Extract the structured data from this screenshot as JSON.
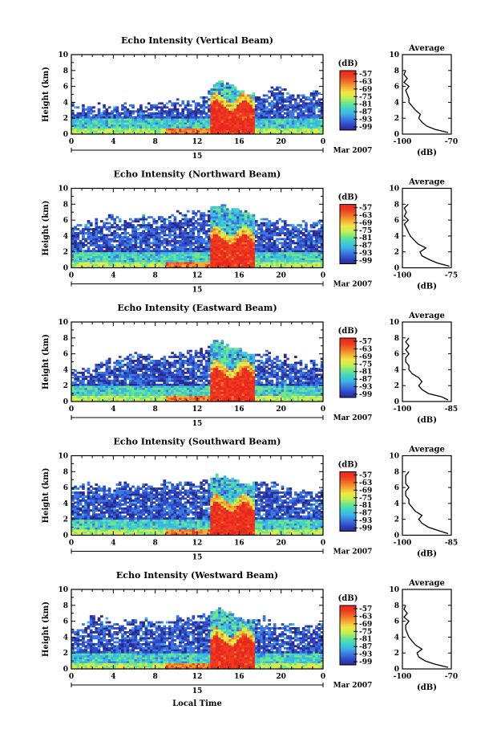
{
  "chart_data": [
    {
      "type": "heatmap",
      "title": "Echo Intensity (Vertical Beam)",
      "ylabel": "Height (km)",
      "x": [
        0,
        1,
        2,
        3,
        4,
        5,
        6,
        7,
        8,
        9,
        10,
        11,
        12,
        13,
        14,
        15,
        16,
        17,
        18,
        19,
        20,
        21,
        22,
        23,
        24
      ],
      "ylim": [
        0,
        10
      ],
      "xlim": [
        0,
        24
      ],
      "yticks": [
        "0",
        "2",
        "4",
        "6",
        "8",
        "10"
      ],
      "xticks": [
        "0",
        "4",
        "8",
        "12",
        "16",
        "20",
        "0"
      ],
      "date_label": "15",
      "month_label": "Mar 2007",
      "colorbar": {
        "unit": "(dB)",
        "ticks": [
          "-57",
          "-63",
          "-69",
          "-75",
          "-81",
          "-87",
          "-93",
          "-99"
        ],
        "range": [
          -99,
          -57
        ]
      },
      "echo_top_km": [
        3.8,
        3.5,
        3.5,
        3.6,
        3.6,
        3.7,
        3.6,
        3.7,
        3.8,
        3.9,
        4.0,
        4.0,
        4.2,
        5.0,
        6.5,
        6.0,
        5.5,
        5.0,
        5.2,
        5.5,
        5.8,
        5.2,
        5.0,
        5.2,
        5.3
      ],
      "profile": {
        "title": "Average",
        "xlabel": "(dB)",
        "xlim": [
          -100,
          -70
        ],
        "xticks": [
          "-100",
          "-70"
        ],
        "yticks": [
          "0",
          "2",
          "4",
          "6",
          "8",
          "10"
        ],
        "height_km": [
          0.2,
          0.6,
          1.0,
          1.5,
          2.0,
          2.5,
          3.0,
          3.5,
          4.0,
          4.5,
          5.0,
          5.5,
          6.0,
          6.5,
          7.0,
          7.5,
          8.0
        ],
        "value_db": [
          -72,
          -80,
          -85,
          -88,
          -90,
          -89,
          -92,
          -94,
          -96,
          -96,
          -97,
          -98,
          -96,
          -99,
          -97,
          -99,
          -98
        ]
      }
    },
    {
      "type": "heatmap",
      "title": "Echo Intensity (Northward Beam)",
      "ylabel": "Height (km)",
      "x": [
        0,
        1,
        2,
        3,
        4,
        5,
        6,
        7,
        8,
        9,
        10,
        11,
        12,
        13,
        14,
        15,
        16,
        17,
        18,
        19,
        20,
        21,
        22,
        23,
        24
      ],
      "ylim": [
        0,
        10
      ],
      "xlim": [
        0,
        24
      ],
      "yticks": [
        "0",
        "2",
        "4",
        "6",
        "8",
        "10"
      ],
      "xticks": [
        "0",
        "4",
        "8",
        "12",
        "16",
        "20",
        "0"
      ],
      "date_label": "15",
      "month_label": "Mar 2007",
      "colorbar": {
        "unit": "(dB)",
        "ticks": [
          "-57",
          "-63",
          "-69",
          "-75",
          "-81",
          "-87",
          "-93",
          "-99"
        ],
        "range": [
          -99,
          -57
        ]
      },
      "echo_top_km": [
        5.0,
        5.5,
        6.0,
        6.0,
        6.5,
        6.2,
        6.0,
        6.5,
        6.0,
        6.5,
        6.8,
        7.0,
        7.0,
        7.5,
        8.0,
        7.5,
        7.2,
        7.0,
        6.5,
        6.0,
        6.0,
        5.5,
        5.5,
        5.8,
        6.0
      ],
      "profile": {
        "title": "Average",
        "xlabel": "(dB)",
        "xlim": [
          -100,
          -75
        ],
        "xticks": [
          "-100",
          "-75"
        ],
        "yticks": [
          "0",
          "2",
          "4",
          "6",
          "8",
          "10"
        ],
        "height_km": [
          0.2,
          0.6,
          1.0,
          1.5,
          2.0,
          2.5,
          3.0,
          3.5,
          4.0,
          4.5,
          5.0,
          5.5,
          6.0,
          6.5,
          7.0,
          7.5,
          8.0
        ],
        "value_db": [
          -76,
          -82,
          -86,
          -90,
          -91,
          -88,
          -92,
          -94,
          -96,
          -97,
          -98,
          -99,
          -97,
          -99,
          -98,
          -99,
          -97
        ]
      }
    },
    {
      "type": "heatmap",
      "title": "Echo Intensity (Eastward Beam)",
      "ylabel": "Height (km)",
      "x": [
        0,
        1,
        2,
        3,
        4,
        5,
        6,
        7,
        8,
        9,
        10,
        11,
        12,
        13,
        14,
        15,
        16,
        17,
        18,
        19,
        20,
        21,
        22,
        23,
        24
      ],
      "ylim": [
        0,
        10
      ],
      "xlim": [
        0,
        24
      ],
      "yticks": [
        "0",
        "2",
        "4",
        "6",
        "8",
        "10"
      ],
      "xticks": [
        "0",
        "4",
        "8",
        "12",
        "16",
        "20",
        "0"
      ],
      "date_label": "15",
      "month_label": "Mar 2007",
      "colorbar": {
        "unit": "(dB)",
        "ticks": [
          "-57",
          "-63",
          "-69",
          "-75",
          "-81",
          "-87",
          "-93",
          "-99"
        ],
        "range": [
          -99,
          -57
        ]
      },
      "echo_top_km": [
        3.8,
        4.0,
        4.2,
        5.0,
        5.5,
        5.5,
        6.0,
        5.8,
        5.5,
        5.5,
        6.0,
        6.0,
        6.2,
        7.0,
        7.5,
        7.0,
        6.5,
        6.0,
        6.0,
        6.0,
        5.5,
        5.5,
        5.0,
        5.0,
        5.5
      ],
      "profile": {
        "title": "Average",
        "xlabel": "(dB)",
        "xlim": [
          -100,
          -85
        ],
        "xticks": [
          "-100",
          "-85"
        ],
        "yticks": [
          "0",
          "2",
          "4",
          "6",
          "8",
          "10"
        ],
        "height_km": [
          0.2,
          0.6,
          1.0,
          1.5,
          2.0,
          2.5,
          3.0,
          3.5,
          4.0,
          4.5,
          5.0,
          5.5,
          6.0,
          6.5,
          7.0,
          7.5,
          8.0
        ],
        "value_db": [
          -86,
          -88,
          -92,
          -94,
          -95,
          -94,
          -95,
          -97,
          -98,
          -98,
          -99,
          -99,
          -98,
          -99,
          -98,
          -99,
          -98
        ]
      }
    },
    {
      "type": "heatmap",
      "title": "Echo Intensity (Southward Beam)",
      "ylabel": "Height (km)",
      "x": [
        0,
        1,
        2,
        3,
        4,
        5,
        6,
        7,
        8,
        9,
        10,
        11,
        12,
        13,
        14,
        15,
        16,
        17,
        18,
        19,
        20,
        21,
        22,
        23,
        24
      ],
      "ylim": [
        0,
        10
      ],
      "xlim": [
        0,
        24
      ],
      "yticks": [
        "0",
        "2",
        "4",
        "6",
        "8",
        "10"
      ],
      "xticks": [
        "0",
        "4",
        "8",
        "12",
        "16",
        "20",
        "0"
      ],
      "date_label": "15",
      "month_label": "Mar 2007",
      "colorbar": {
        "unit": "(dB)",
        "ticks": [
          "-57",
          "-63",
          "-69",
          "-75",
          "-81",
          "-87",
          "-93",
          "-99"
        ],
        "range": [
          -99,
          -57
        ]
      },
      "echo_top_km": [
        5.5,
        6.5,
        6.5,
        6.0,
        6.0,
        6.5,
        6.0,
        6.5,
        6.5,
        6.5,
        6.5,
        6.5,
        6.5,
        7.0,
        7.5,
        7.0,
        6.5,
        6.5,
        6.5,
        6.5,
        6.0,
        6.0,
        5.5,
        5.5,
        5.5
      ],
      "profile": {
        "title": "Average",
        "xlabel": "(dB)",
        "xlim": [
          -100,
          -85
        ],
        "xticks": [
          "-100",
          "-85"
        ],
        "yticks": [
          "0",
          "2",
          "4",
          "6",
          "8",
          "10"
        ],
        "height_km": [
          0.2,
          0.6,
          1.0,
          1.5,
          2.0,
          2.5,
          3.0,
          3.5,
          4.0,
          4.5,
          5.0,
          5.5,
          6.0,
          6.5,
          7.0,
          7.5,
          8.0
        ],
        "value_db": [
          -86,
          -89,
          -92,
          -94,
          -95,
          -94,
          -96,
          -97,
          -98,
          -98,
          -99,
          -99,
          -98,
          -99,
          -99,
          -99,
          -98
        ]
      }
    },
    {
      "type": "heatmap",
      "title": "Echo Intensity (Westward Beam)",
      "ylabel": "Height (km)",
      "xlabel": "Local Time",
      "x": [
        0,
        1,
        2,
        3,
        4,
        5,
        6,
        7,
        8,
        9,
        10,
        11,
        12,
        13,
        14,
        15,
        16,
        17,
        18,
        19,
        20,
        21,
        22,
        23,
        24
      ],
      "ylim": [
        0,
        10
      ],
      "xlim": [
        0,
        24
      ],
      "yticks": [
        "0",
        "2",
        "4",
        "6",
        "8",
        "10"
      ],
      "xticks": [
        "0",
        "4",
        "8",
        "12",
        "16",
        "20",
        "0"
      ],
      "date_label": "15",
      "month_label": "Mar 2007",
      "colorbar": {
        "unit": "(dB)",
        "ticks": [
          "-57",
          "-63",
          "-69",
          "-75",
          "-81",
          "-87",
          "-93",
          "-99"
        ],
        "range": [
          -99,
          -57
        ]
      },
      "echo_top_km": [
        4.5,
        5.0,
        7.0,
        6.5,
        5.5,
        6.0,
        6.0,
        6.0,
        6.0,
        6.0,
        6.5,
        6.5,
        6.5,
        7.0,
        7.5,
        7.0,
        6.5,
        6.0,
        6.5,
        6.0,
        5.5,
        5.5,
        5.5,
        5.5,
        5.5
      ],
      "profile": {
        "title": "Average",
        "xlabel": "(dB)",
        "xlim": [
          -100,
          -70
        ],
        "xticks": [
          "-100",
          "-70"
        ],
        "yticks": [
          "0",
          "2",
          "4",
          "6",
          "8",
          "10"
        ],
        "height_km": [
          0.2,
          0.6,
          1.0,
          1.5,
          2.0,
          2.5,
          3.0,
          3.5,
          4.0,
          4.5,
          5.0,
          5.5,
          6.0,
          6.5,
          7.0,
          7.5,
          8.0
        ],
        "value_db": [
          -72,
          -80,
          -86,
          -90,
          -91,
          -88,
          -92,
          -94,
          -96,
          -97,
          -98,
          -98,
          -96,
          -99,
          -97,
          -99,
          -98
        ]
      }
    }
  ],
  "colors": {
    "scale": [
      "#2a2a8c",
      "#2e48c8",
      "#3c78e0",
      "#3cb4e6",
      "#40d2c8",
      "#6ee68a",
      "#c8f050",
      "#f0e646",
      "#f5aa32",
      "#f06e28",
      "#ee3a1e",
      "#e8281e"
    ]
  }
}
